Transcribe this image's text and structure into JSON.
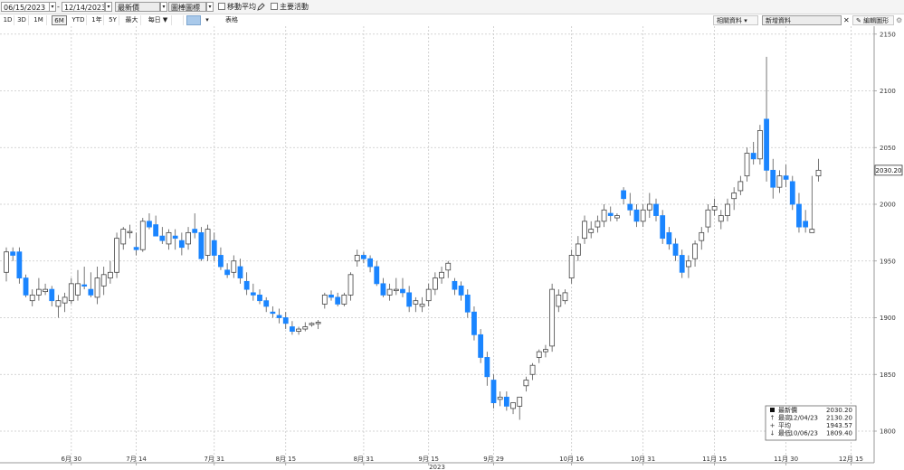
{
  "toolbar": {
    "start_date": "06/15/2023",
    "end_date": "12/14/2023",
    "range_sep": "-",
    "price_field": "最新價",
    "chart_type": "圖棒圖標",
    "moving_avg_label": "移動平均",
    "main_activity_label": "主要活動",
    "dropdown_glyph": "▾"
  },
  "periods": [
    "1D",
    "3D",
    "1M",
    "6M",
    "YTD",
    "1年",
    "5Y",
    "最大",
    "每日 ▼"
  ],
  "active_period": "6M",
  "table_label": "表格",
  "related_data_label": "相關資料",
  "news_field": "新增資料",
  "edit_chart_label": "編輯圖形",
  "colors": {
    "down": "#1a85ff",
    "up_fill": "#ffffff",
    "up_stroke": "#444444",
    "grid": "#c8c8c8"
  },
  "chart_data": {
    "type": "candlestick",
    "y_ticks": [
      1800,
      1850,
      1900,
      1950,
      2000,
      2050,
      2100,
      2150
    ],
    "ylim": [
      1780,
      2160
    ],
    "year_label": "2023",
    "x_ticks": [
      {
        "i": 10,
        "label": "6月 30"
      },
      {
        "i": 20,
        "label": "7月 14"
      },
      {
        "i": 32,
        "label": "7月 31"
      },
      {
        "i": 43,
        "label": "8月 15"
      },
      {
        "i": 55,
        "label": "8月 31"
      },
      {
        "i": 65,
        "label": "9月 15"
      },
      {
        "i": 75,
        "label": "9月 29"
      },
      {
        "i": 87,
        "label": "10月 16"
      },
      {
        "i": 98,
        "label": "10月 31"
      },
      {
        "i": 109,
        "label": "11月 15"
      },
      {
        "i": 120,
        "label": "11月 30"
      },
      {
        "i": 130,
        "label": "12月 15"
      }
    ],
    "last_price_label": "2030.20",
    "candles": [
      [
        1940,
        1962,
        1932,
        1958
      ],
      [
        1958,
        1962,
        1950,
        1955
      ],
      [
        1958,
        1962,
        1930,
        1935
      ],
      [
        1935,
        1938,
        1918,
        1920
      ],
      [
        1915,
        1925,
        1910,
        1920
      ],
      [
        1920,
        1935,
        1915,
        1925
      ],
      [
        1923,
        1930,
        1920,
        1925
      ],
      [
        1925,
        1928,
        1910,
        1915
      ],
      [
        1910,
        1920,
        1900,
        1915
      ],
      [
        1913,
        1922,
        1905,
        1918
      ],
      [
        1915,
        1935,
        1912,
        1930
      ],
      [
        1920,
        1942,
        1915,
        1930
      ],
      [
        1929,
        1945,
        1925,
        1928
      ],
      [
        1925,
        1940,
        1918,
        1920
      ],
      [
        1918,
        1945,
        1912,
        1935
      ],
      [
        1928,
        1945,
        1920,
        1938
      ],
      [
        1935,
        1950,
        1930,
        1940
      ],
      [
        1940,
        1975,
        1935,
        1970
      ],
      [
        1965,
        1980,
        1960,
        1978
      ],
      [
        1975,
        1982,
        1970,
        1976
      ],
      [
        1962,
        1975,
        1955,
        1960
      ],
      [
        1960,
        1988,
        1958,
        1985
      ],
      [
        1985,
        1992,
        1978,
        1980
      ],
      [
        1982,
        1990,
        1975,
        1972
      ],
      [
        1972,
        1980,
        1965,
        1968
      ],
      [
        1965,
        1978,
        1960,
        1975
      ],
      [
        1972,
        1978,
        1960,
        1970
      ],
      [
        1968,
        1975,
        1955,
        1962
      ],
      [
        1965,
        1980,
        1960,
        1975
      ],
      [
        1978,
        1992,
        1970,
        1975
      ],
      [
        1975,
        1980,
        1950,
        1952
      ],
      [
        1955,
        1982,
        1950,
        1978
      ],
      [
        1968,
        1975,
        1950,
        1955
      ],
      [
        1955,
        1962,
        1942,
        1945
      ],
      [
        1942,
        1948,
        1935,
        1938
      ],
      [
        1940,
        1955,
        1935,
        1950
      ],
      [
        1945,
        1952,
        1930,
        1935
      ],
      [
        1932,
        1940,
        1920,
        1925
      ],
      [
        1922,
        1930,
        1915,
        1920
      ],
      [
        1920,
        1925,
        1912,
        1915
      ],
      [
        1915,
        1918,
        1905,
        1910
      ],
      [
        1905,
        1910,
        1900,
        1904
      ],
      [
        1902,
        1908,
        1895,
        1900
      ],
      [
        1900,
        1905,
        1890,
        1895
      ],
      [
        1892,
        1897,
        1885,
        1888
      ],
      [
        1888,
        1892,
        1885,
        1890
      ],
      [
        1890,
        1896,
        1888,
        1892
      ],
      [
        1894,
        1896,
        1892,
        1895
      ],
      [
        1895,
        1898,
        1890,
        1896
      ],
      [
        1912,
        1922,
        1908,
        1920
      ],
      [
        1920,
        1924,
        1915,
        1918
      ],
      [
        1918,
        1922,
        1910,
        1912
      ],
      [
        1912,
        1922,
        1910,
        1920
      ],
      [
        1920,
        1940,
        1915,
        1938
      ],
      [
        1950,
        1960,
        1945,
        1955
      ],
      [
        1955,
        1958,
        1948,
        1952
      ],
      [
        1952,
        1955,
        1940,
        1945
      ],
      [
        1945,
        1950,
        1928,
        1930
      ],
      [
        1930,
        1935,
        1918,
        1920
      ],
      [
        1920,
        1930,
        1915,
        1925
      ],
      [
        1925,
        1935,
        1920,
        1925
      ],
      [
        1925,
        1935,
        1918,
        1922
      ],
      [
        1922,
        1928,
        1905,
        1910
      ],
      [
        1912,
        1918,
        1905,
        1915
      ],
      [
        1910,
        1918,
        1905,
        1912
      ],
      [
        1915,
        1930,
        1910,
        1925
      ],
      [
        1925,
        1940,
        1920,
        1935
      ],
      [
        1935,
        1945,
        1930,
        1940
      ],
      [
        1942,
        1950,
        1935,
        1948
      ],
      [
        1932,
        1935,
        1920,
        1925
      ],
      [
        1928,
        1932,
        1915,
        1920
      ],
      [
        1920,
        1925,
        1900,
        1905
      ],
      [
        1905,
        1910,
        1880,
        1885
      ],
      [
        1885,
        1890,
        1860,
        1865
      ],
      [
        1865,
        1870,
        1840,
        1848
      ],
      [
        1845,
        1850,
        1820,
        1825
      ],
      [
        1828,
        1835,
        1822,
        1830
      ],
      [
        1830,
        1835,
        1818,
        1822
      ],
      [
        1820,
        1825,
        1815,
        1825
      ],
      [
        1822,
        1830,
        1810,
        1830
      ],
      [
        1840,
        1848,
        1835,
        1845
      ],
      [
        1850,
        1860,
        1845,
        1858
      ],
      [
        1865,
        1872,
        1860,
        1870
      ],
      [
        1870,
        1876,
        1865,
        1872
      ],
      [
        1875,
        1930,
        1870,
        1925
      ],
      [
        1910,
        1925,
        1905,
        1920
      ],
      [
        1915,
        1925,
        1912,
        1922
      ],
      [
        1935,
        1960,
        1930,
        1955
      ],
      [
        1955,
        1972,
        1950,
        1965
      ],
      [
        1970,
        1990,
        1965,
        1985
      ],
      [
        1975,
        1985,
        1970,
        1978
      ],
      [
        1980,
        1990,
        1975,
        1985
      ],
      [
        1985,
        2000,
        1980,
        1995
      ],
      [
        1992,
        1998,
        1985,
        1990
      ],
      [
        1988,
        1992,
        1985,
        1990
      ],
      [
        2012,
        2015,
        2000,
        2005
      ],
      [
        2000,
        2010,
        1990,
        1995
      ],
      [
        1995,
        2000,
        1980,
        1985
      ],
      [
        1985,
        2000,
        1980,
        1995
      ],
      [
        1995,
        2010,
        1988,
        2000
      ],
      [
        2000,
        2005,
        1985,
        1990
      ],
      [
        1990,
        1995,
        1965,
        1970
      ],
      [
        1975,
        1980,
        1960,
        1965
      ],
      [
        1965,
        1970,
        1950,
        1955
      ],
      [
        1955,
        1960,
        1935,
        1940
      ],
      [
        1945,
        1955,
        1935,
        1950
      ],
      [
        1952,
        1968,
        1945,
        1965
      ],
      [
        1968,
        1980,
        1960,
        1975
      ],
      [
        1980,
        2000,
        1975,
        1995
      ],
      [
        1995,
        2005,
        1990,
        1998
      ],
      [
        1985,
        1995,
        1978,
        1990
      ],
      [
        1990,
        2005,
        1985,
        2000
      ],
      [
        2005,
        2015,
        1995,
        2010
      ],
      [
        2012,
        2025,
        2008,
        2020
      ],
      [
        2025,
        2050,
        2020,
        2045
      ],
      [
        2045,
        2055,
        2035,
        2040
      ],
      [
        2040,
        2070,
        2035,
        2065
      ],
      [
        2075,
        2130,
        2020,
        2030
      ],
      [
        2030,
        2040,
        2005,
        2015
      ],
      [
        2015,
        2030,
        2010,
        2025
      ],
      [
        2025,
        2035,
        2015,
        2022
      ],
      [
        2020,
        2025,
        1995,
        2000
      ],
      [
        2000,
        2010,
        1975,
        1980
      ],
      [
        1985,
        1995,
        1975,
        1980
      ],
      [
        1975,
        2025,
        1975,
        1978
      ],
      [
        2025,
        2040,
        2020,
        2030
      ]
    ],
    "legend": [
      {
        "marker": "box",
        "label": "最新價",
        "date": "",
        "value": "2030.20"
      },
      {
        "marker": "up",
        "label": "最高",
        "date": "12/04/23",
        "value": "2130.20"
      },
      {
        "marker": "plus",
        "label": "平均",
        "date": "",
        "value": "1943.57"
      },
      {
        "marker": "down",
        "label": "最低",
        "date": "10/06/23",
        "value": "1809.40"
      }
    ]
  }
}
